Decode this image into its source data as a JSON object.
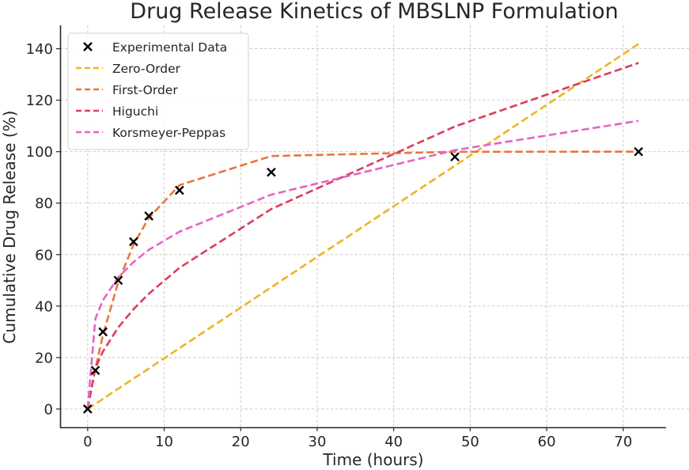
{
  "chart_data": {
    "type": "line",
    "title": "Drug Release Kinetics of MBSLNP Formulation",
    "xlabel": "Time (hours)",
    "ylabel": "Cumulative Drug Release (%)",
    "xlim": [
      -3.6,
      75.6
    ],
    "ylim": [
      -7.1,
      149.1
    ],
    "xticks": [
      0,
      10,
      20,
      30,
      40,
      50,
      60,
      70
    ],
    "yticks": [
      0,
      20,
      40,
      60,
      80,
      100,
      120,
      140
    ],
    "grid": true,
    "legend_position": "top-left",
    "x": [
      0,
      1,
      2,
      4,
      6,
      8,
      12,
      24,
      48,
      72
    ],
    "series": [
      {
        "name": "Experimental Data",
        "kind": "scatter",
        "marker": "x",
        "color": "#000000",
        "values": [
          0,
          15,
          30,
          50,
          65,
          75,
          85,
          92,
          98,
          100
        ]
      },
      {
        "name": "Zero-Order",
        "kind": "line",
        "style": "dashed",
        "color": "#f0b323",
        "values": [
          0,
          1.97,
          3.94,
          7.88,
          11.82,
          15.76,
          23.64,
          47.28,
          94.56,
          141.84
        ]
      },
      {
        "name": "First-Order",
        "kind": "line",
        "style": "dashed",
        "color": "#e6773a",
        "values": [
          0,
          15.6,
          28.8,
          49.3,
          63.9,
          74.3,
          87.0,
          98.3,
          99.97,
          100.0
        ]
      },
      {
        "name": "Higuchi",
        "kind": "line",
        "style": "dashed",
        "color": "#dc3d5a",
        "values": [
          0,
          15.85,
          22.4,
          31.7,
          38.8,
          44.8,
          54.9,
          77.7,
          109.8,
          134.5
        ]
      },
      {
        "name": "Korsmeyer-Peppas",
        "kind": "line",
        "style": "dashed",
        "color": "#e664c4",
        "values": [
          0,
          35.0,
          42.3,
          51.2,
          57.1,
          61.9,
          68.9,
          83.3,
          100.6,
          112.0
        ]
      }
    ]
  }
}
